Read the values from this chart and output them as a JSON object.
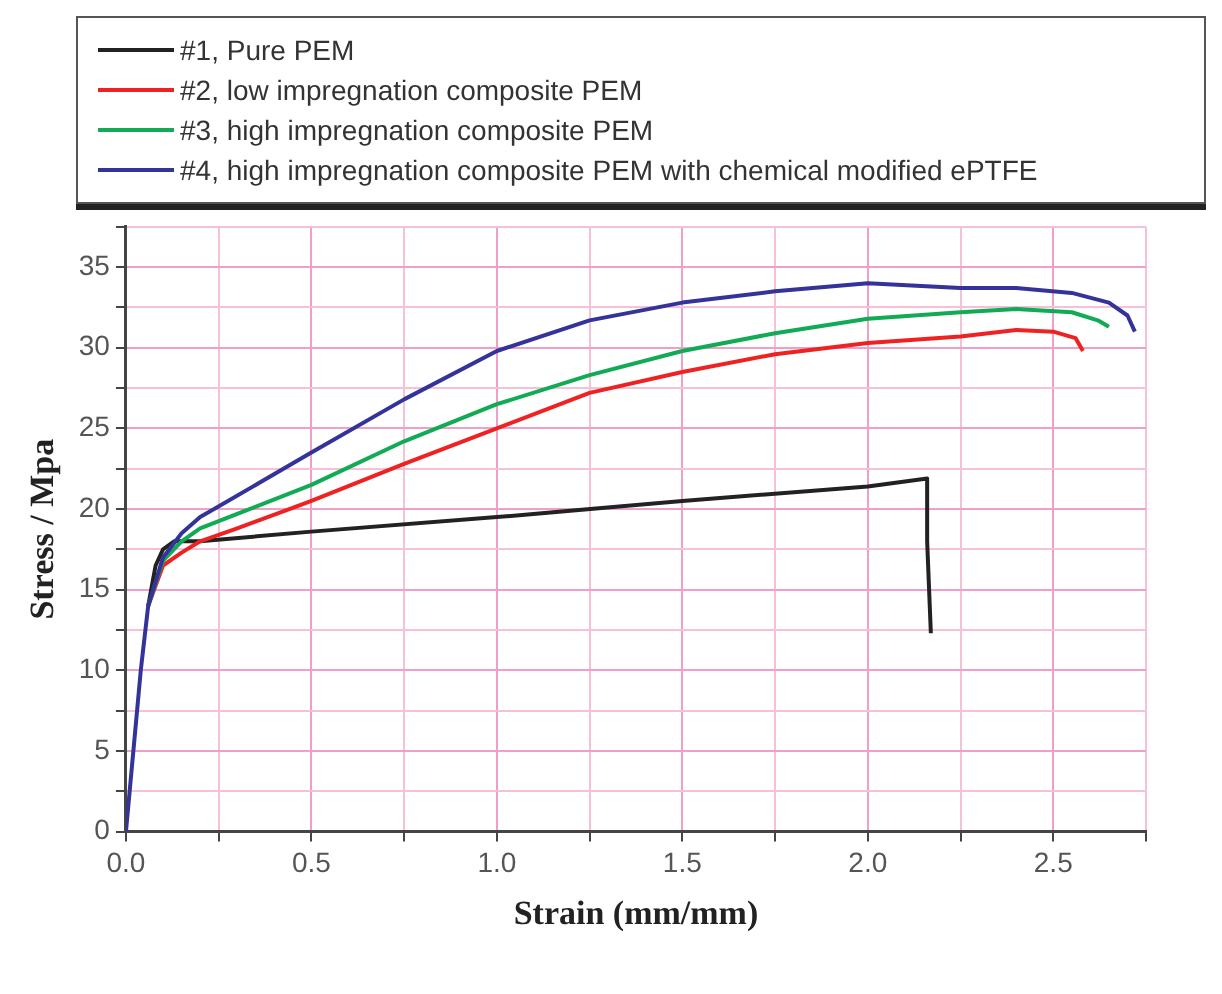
{
  "chart_data": {
    "type": "line",
    "xlabel": "Strain (mm/mm)",
    "ylabel": "Stress / Mpa",
    "xlim": [
      0,
      2.75
    ],
    "ylim": [
      0,
      37.5
    ],
    "xticks": [
      {
        "value": 0,
        "label": "0.0"
      },
      {
        "value": 0.25,
        "label": null
      },
      {
        "value": 0.5,
        "label": "0.5"
      },
      {
        "value": 0.75,
        "label": null
      },
      {
        "value": 1,
        "label": "1.0"
      },
      {
        "value": 1.25,
        "label": null
      },
      {
        "value": 1.5,
        "label": "1.5"
      },
      {
        "value": 1.75,
        "label": null
      },
      {
        "value": 2,
        "label": "2.0"
      },
      {
        "value": 2.25,
        "label": null
      },
      {
        "value": 2.5,
        "label": "2.5"
      },
      {
        "value": 2.75,
        "label": null
      }
    ],
    "yticks": [
      0,
      {
        "value": 2.5,
        "label": null
      },
      5,
      {
        "value": 7.5,
        "label": null
      },
      10,
      {
        "value": 12.5,
        "label": null
      },
      15,
      {
        "value": 17.5,
        "label": null
      },
      20,
      {
        "value": 22.5,
        "label": null
      },
      25,
      {
        "value": 27.5,
        "label": null
      },
      30,
      {
        "value": 32.5,
        "label": null
      },
      35,
      {
        "value": 37.5,
        "label": null
      }
    ],
    "grid": true,
    "legend": "top",
    "series": [
      {
        "name": "#1, Pure PEM",
        "color": "#222222",
        "x": [
          0.06,
          0.08,
          0.1,
          0.13,
          0.2,
          0.5,
          1.0,
          1.5,
          2.0,
          2.16,
          2.16,
          2.17
        ],
        "values": [
          14,
          16.5,
          17.5,
          18,
          18,
          18.6,
          19.5,
          20.5,
          21.4,
          21.9,
          18,
          12.3
        ]
      },
      {
        "name": "#2, low impregnation composite PEM",
        "color": "#ee2222",
        "x": [
          0.06,
          0.1,
          0.15,
          0.2,
          0.3,
          0.5,
          0.75,
          1.0,
          1.25,
          1.5,
          1.75,
          2.0,
          2.25,
          2.4,
          2.5,
          2.56,
          2.58
        ],
        "values": [
          14,
          16.5,
          17.3,
          18,
          18.8,
          20.5,
          22.8,
          25,
          27.2,
          28.5,
          29.6,
          30.3,
          30.7,
          31.1,
          31,
          30.6,
          29.8
        ]
      },
      {
        "name": "#3, high impregnation composite PEM",
        "color": "#11aa55",
        "x": [
          0.06,
          0.1,
          0.15,
          0.2,
          0.5,
          0.75,
          1.0,
          1.25,
          1.5,
          1.75,
          2.0,
          2.25,
          2.4,
          2.55,
          2.62,
          2.65
        ],
        "values": [
          14,
          16.8,
          18,
          18.8,
          21.5,
          24.2,
          26.5,
          28.3,
          29.8,
          30.9,
          31.8,
          32.2,
          32.4,
          32.2,
          31.7,
          31.3
        ]
      },
      {
        "name": "#4, high impregnation composite PEM with chemical modified ePTFE",
        "color": "#333399",
        "x": [
          0,
          0.02,
          0.04,
          0.06,
          0.1,
          0.15,
          0.2,
          0.5,
          0.75,
          1.0,
          1.25,
          1.5,
          1.75,
          2.0,
          2.25,
          2.4,
          2.55,
          2.65,
          2.7,
          2.72
        ],
        "values": [
          0,
          5,
          10,
          14,
          17,
          18.5,
          19.5,
          23.5,
          26.8,
          29.8,
          31.7,
          32.8,
          33.5,
          34,
          33.7,
          33.7,
          33.4,
          32.8,
          32,
          31
        ]
      }
    ]
  }
}
